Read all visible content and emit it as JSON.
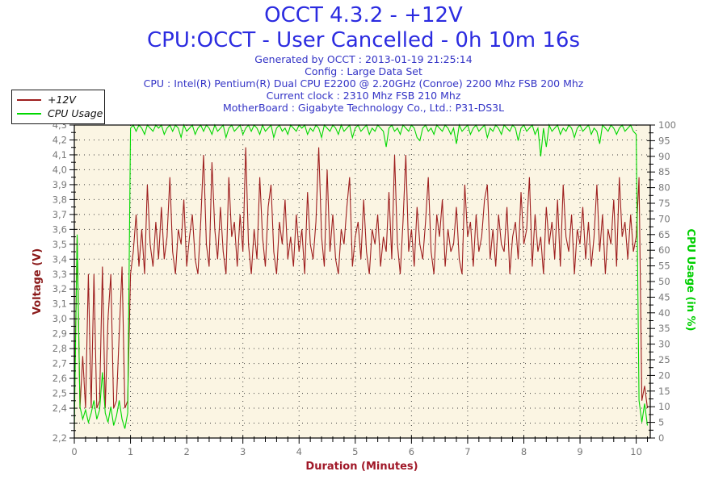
{
  "header": {
    "title": "OCCT 4.3.2 - +12V",
    "subtitle": "CPU:OCCT - User Cancelled - 0h 10m 16s",
    "title_color": "#2b2be0",
    "info_color": "#3434c6",
    "info": [
      "Generated by OCCT : 2013-01-19 21:25:14",
      "Config : Large Data Set",
      "CPU : Intel(R) Pentium(R) Dual CPU E2200 @ 2.20GHz (Conroe) 2200 Mhz FSB 200 Mhz",
      "Current clock : 2310 Mhz FSB 210 Mhz",
      "MotherBoard : Gigabyte Technology Co., Ltd.: P31-DS3L"
    ]
  },
  "legend": {
    "items": [
      {
        "label": "+12V",
        "color": "#9e1e1e"
      },
      {
        "label": "CPU Usage",
        "color": "#00d800"
      }
    ]
  },
  "axis_colors": {
    "xlabel": "#a01828",
    "left": "#8b1a1a",
    "right": "#00cf00",
    "ticks": "#787878"
  },
  "chart_data": {
    "type": "line",
    "xlabel": "Duration (Minutes)",
    "ylabel_left": "Voltage (V)",
    "ylabel_right": "CPU Usage (in %)",
    "background": "#fbf5e3",
    "grid": {
      "color": "#3c3c3c",
      "style": "dotted",
      "x_every": 1,
      "y_left_every": 0.1
    },
    "x_axis": {
      "min": 0,
      "max": 10.25,
      "major_step": 1,
      "minor_step": 0.2,
      "labels": [
        "0",
        "1",
        "2",
        "3",
        "4",
        "5",
        "6",
        "7",
        "8",
        "9",
        "10"
      ]
    },
    "y_left": {
      "min": 2.2,
      "max": 4.3,
      "major_step": 0.1,
      "minor_step": 0.05,
      "decimal_separator": ",",
      "omit_labels": [
        "2,3"
      ]
    },
    "y_right": {
      "min": 0,
      "max": 100,
      "major_step": 5,
      "minor_step": 2.5
    },
    "series": [
      {
        "name": "+12V",
        "axis": "left",
        "color": "#9e1e1e",
        "x0": 0,
        "dx": 0.05,
        "values": [
          2.4,
          3.55,
          2.4,
          2.75,
          2.4,
          3.3,
          2.4,
          3.3,
          2.4,
          2.45,
          3.35,
          2.4,
          3.0,
          3.3,
          2.4,
          2.45,
          2.9,
          3.35,
          2.4,
          2.45,
          3.3,
          3.45,
          3.7,
          3.35,
          3.6,
          3.3,
          3.9,
          3.5,
          3.35,
          3.65,
          3.4,
          3.75,
          3.4,
          3.55,
          3.95,
          3.45,
          3.3,
          3.6,
          3.5,
          3.8,
          3.35,
          3.55,
          3.7,
          3.4,
          3.3,
          3.65,
          4.1,
          3.5,
          3.35,
          4.05,
          3.6,
          3.4,
          3.75,
          3.45,
          3.3,
          3.95,
          3.55,
          3.65,
          3.35,
          3.7,
          3.45,
          4.15,
          3.5,
          3.3,
          3.6,
          3.4,
          3.95,
          3.55,
          3.35,
          3.75,
          3.9,
          3.45,
          3.3,
          3.65,
          3.5,
          3.8,
          3.4,
          3.55,
          3.35,
          3.7,
          3.45,
          3.6,
          3.3,
          3.85,
          3.5,
          3.4,
          3.65,
          4.15,
          3.55,
          3.35,
          4.0,
          3.45,
          3.7,
          3.4,
          3.3,
          3.6,
          3.5,
          3.75,
          3.95,
          3.35,
          3.55,
          3.65,
          3.4,
          3.8,
          3.45,
          3.3,
          3.6,
          3.5,
          3.7,
          3.35,
          3.55,
          3.45,
          3.85,
          3.4,
          4.1,
          3.5,
          3.3,
          3.65,
          4.1,
          3.45,
          3.6,
          3.35,
          3.75,
          3.5,
          3.4,
          3.65,
          3.95,
          3.45,
          3.3,
          3.7,
          3.55,
          3.8,
          3.35,
          3.6,
          3.45,
          3.5,
          3.75,
          3.4,
          3.3,
          3.9,
          3.55,
          3.65,
          3.35,
          3.7,
          3.45,
          3.55,
          3.8,
          3.9,
          3.4,
          3.6,
          3.35,
          3.7,
          3.5,
          3.45,
          3.75,
          3.3,
          3.55,
          3.65,
          3.4,
          3.85,
          3.5,
          3.6,
          3.95,
          3.35,
          3.7,
          3.45,
          3.55,
          3.3,
          3.75,
          3.5,
          3.65,
          3.4,
          3.8,
          3.35,
          3.9,
          3.55,
          3.45,
          3.7,
          3.3,
          3.6,
          3.5,
          3.75,
          3.4,
          3.65,
          3.35,
          3.55,
          3.9,
          3.45,
          3.7,
          3.3,
          3.6,
          3.5,
          3.8,
          3.35,
          3.95,
          3.55,
          3.65,
          3.4,
          3.7,
          3.45,
          3.55,
          3.95,
          2.45,
          2.55,
          2.4
        ]
      },
      {
        "name": "CPU Usage",
        "axis": "right",
        "color": "#00d800",
        "x0": 0,
        "dx": 0.05,
        "values": [
          3,
          65,
          10,
          6,
          9,
          5,
          8,
          12,
          6,
          9,
          21,
          8,
          5,
          10,
          4,
          7,
          12,
          6,
          3,
          8,
          99,
          100,
          98,
          100,
          99,
          97,
          100,
          99,
          98,
          100,
          99,
          100,
          97,
          99,
          100,
          98,
          100,
          99,
          96,
          100,
          98,
          99,
          100,
          97,
          99,
          100,
          98,
          100,
          99,
          97,
          100,
          98,
          99,
          100,
          96,
          99,
          100,
          98,
          99,
          100,
          97,
          99,
          100,
          98,
          100,
          99,
          97,
          100,
          98,
          99,
          100,
          96,
          99,
          100,
          98,
          99,
          97,
          100,
          99,
          98,
          100,
          99,
          100,
          97,
          99,
          98,
          100,
          99,
          96,
          100,
          99,
          98,
          100,
          99,
          97,
          100,
          98,
          99,
          100,
          96,
          99,
          100,
          98,
          99,
          100,
          97,
          99,
          98,
          100,
          99,
          98,
          93,
          99,
          100,
          98,
          99,
          97,
          100,
          99,
          98,
          100,
          99,
          96,
          95,
          99,
          100,
          98,
          99,
          97,
          100,
          99,
          98,
          100,
          99,
          97,
          99,
          94,
          100,
          98,
          99,
          100,
          97,
          99,
          100,
          98,
          99,
          100,
          96,
          99,
          98,
          100,
          99,
          97,
          100,
          99,
          98,
          100,
          99,
          95,
          99,
          100,
          98,
          99,
          100,
          97,
          99,
          90,
          99,
          93,
          100,
          98,
          99,
          100,
          97,
          99,
          98,
          100,
          99,
          96,
          99,
          100,
          98,
          99,
          100,
          97,
          99,
          98,
          94,
          100,
          99,
          98,
          100,
          99,
          97,
          99,
          100,
          98,
          99,
          100,
          98,
          97,
          12,
          5,
          11,
          4
        ]
      }
    ]
  }
}
